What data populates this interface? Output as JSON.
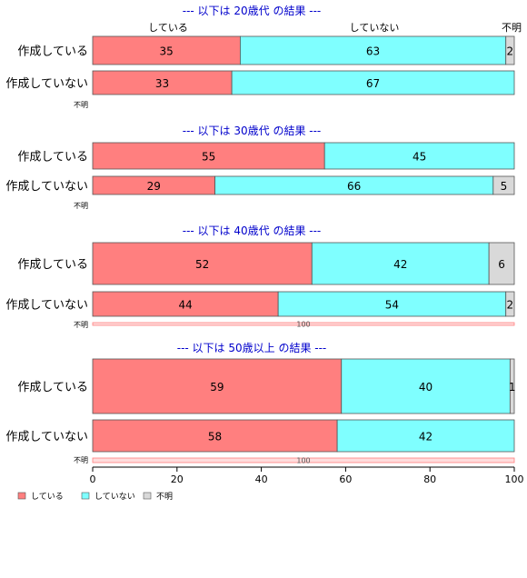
{
  "chart_data": {
    "type": "bar",
    "orientation": "horizontal",
    "stacked": true,
    "xlim": [
      0,
      100
    ],
    "xticks": [
      "0",
      "20",
      "40",
      "60",
      "80",
      "100"
    ],
    "legend": {
      "placement": "bottom-left",
      "entries": [
        {
          "label": "している",
          "color": "#ff7f7f"
        },
        {
          "label": "していない",
          "color": "#7fffff"
        },
        {
          "label": "不明",
          "color": "#d9d9d9"
        }
      ]
    },
    "top_header_labels": [
      "している",
      "していない",
      "不明"
    ],
    "panels": [
      {
        "title": "--- 以下は 20歳代 の結果 ---",
        "rows": [
          {
            "label": "作成している",
            "values": [
              35,
              63,
              2
            ]
          },
          {
            "label": "作成していない",
            "values": [
              33,
              67,
              0
            ]
          },
          {
            "label": "不明",
            "values": [
              0,
              0,
              0
            ]
          }
        ]
      },
      {
        "title": "--- 以下は 30歳代 の結果 ---",
        "rows": [
          {
            "label": "作成している",
            "values": [
              55,
              45,
              0
            ]
          },
          {
            "label": "作成していない",
            "values": [
              29,
              66,
              5
            ]
          },
          {
            "label": "不明",
            "values": [
              0,
              0,
              0
            ]
          }
        ]
      },
      {
        "title": "--- 以下は 40歳代 の結果 ---",
        "rows": [
          {
            "label": "作成している",
            "values": [
              52,
              42,
              6
            ]
          },
          {
            "label": "作成していない",
            "values": [
              44,
              54,
              2
            ]
          },
          {
            "label": "不明",
            "values": [
              100,
              0,
              0
            ]
          }
        ]
      },
      {
        "title": "--- 以下は 50歳以上 の結果 ---",
        "rows": [
          {
            "label": "作成している",
            "values": [
              59,
              40,
              1
            ]
          },
          {
            "label": "作成していない",
            "values": [
              58,
              42,
              0
            ]
          },
          {
            "label": "不明",
            "values": [
              100,
              0,
              0
            ]
          }
        ]
      }
    ]
  },
  "colors": {
    "series": [
      "#ff7f7f",
      "#7fffff",
      "#d9d9d9"
    ],
    "title": "#0000cc",
    "bar_border": "#555555"
  }
}
